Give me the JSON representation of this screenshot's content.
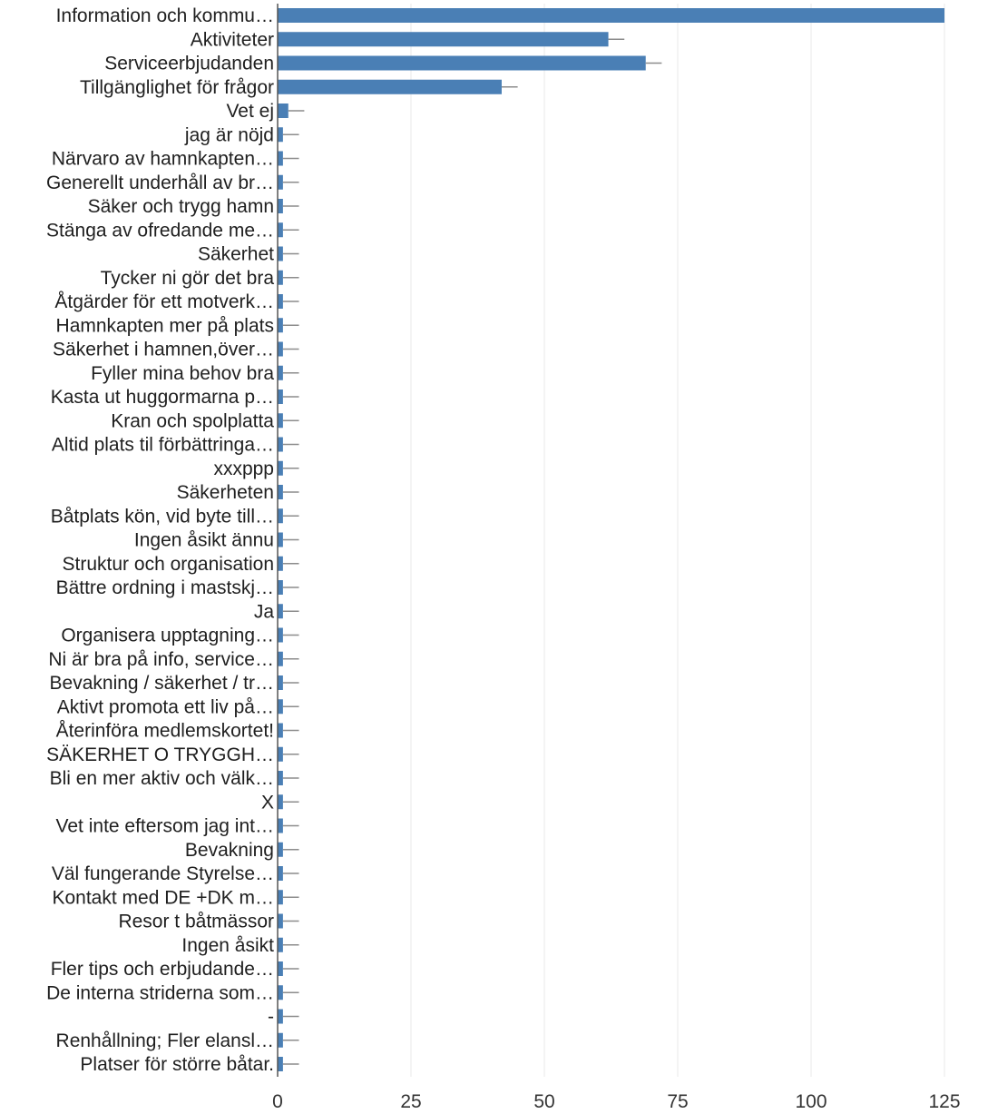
{
  "chart_data": {
    "type": "bar",
    "orientation": "horizontal",
    "categories": [
      "Information och kommu…",
      "Aktiviteter",
      "Serviceerbjudanden",
      "Tillgänglighet för frågor",
      "Vet ej",
      "jag är nöjd",
      "Närvaro av hamnkapten…",
      "Generellt underhåll av br…",
      "Säker och trygg hamn",
      "Stänga av ofredande me…",
      "Säkerhet",
      "Tycker ni gör det bra",
      "Åtgärder för ett motverk…",
      "Hamnkapten mer på plats",
      "Säkerhet i hamnen,över…",
      "Fyller mina behov bra",
      "Kasta ut huggormarna p…",
      "Kran och spolplatta",
      "Altid plats til förbättringa…",
      "xxxppp",
      "Säkerheten",
      "Båtplats kön, vid byte till…",
      "Ingen åsikt ännu",
      "Struktur och organisation",
      "Bättre ordning i mastskj…",
      "Ja",
      "Organisera upptagning…",
      "Ni är bra på info, service…",
      "Bevakning / säkerhet / tr…",
      "Aktivt promota ett liv på…",
      "Återinföra medlemskortet!",
      "SÄKERHET O TRYGGH…",
      "Bli en mer aktiv och välk…",
      "X",
      "Vet inte eftersom jag int…",
      "Bevakning",
      "Väl fungerande Styrelse…",
      "Kontakt med DE +DK m…",
      "Resor t båtmässor",
      "Ingen åsikt",
      "Fler tips och erbjudande…",
      "De interna striderna som…",
      "-",
      "Renhållning; Fler elansl…",
      "Platser för större båtar."
    ],
    "values": [
      125,
      62,
      69,
      42,
      2,
      1,
      1,
      1,
      1,
      1,
      1,
      1,
      1,
      1,
      1,
      1,
      1,
      1,
      1,
      1,
      1,
      1,
      1,
      1,
      1,
      1,
      1,
      1,
      1,
      1,
      1,
      1,
      1,
      1,
      1,
      1,
      1,
      1,
      1,
      1,
      1,
      1,
      1,
      1,
      1
    ],
    "error_upper": [
      125,
      65,
      72,
      45,
      5,
      4,
      4,
      4,
      4,
      4,
      4,
      4,
      4,
      4,
      4,
      4,
      4,
      4,
      4,
      4,
      4,
      4,
      4,
      4,
      4,
      4,
      4,
      4,
      4,
      4,
      4,
      4,
      4,
      4,
      4,
      4,
      4,
      4,
      4,
      4,
      4,
      4,
      4,
      4,
      4
    ],
    "xlim": [
      0,
      125
    ],
    "xticks": [
      0,
      25,
      50,
      75,
      100,
      125
    ],
    "title": "",
    "xlabel": "",
    "ylabel": "",
    "grid": "vertical",
    "colors": {
      "bar": "#4a7fb5",
      "error_bar": "#8c8c8c",
      "grid": "#ececec",
      "axis": "#555555"
    }
  }
}
